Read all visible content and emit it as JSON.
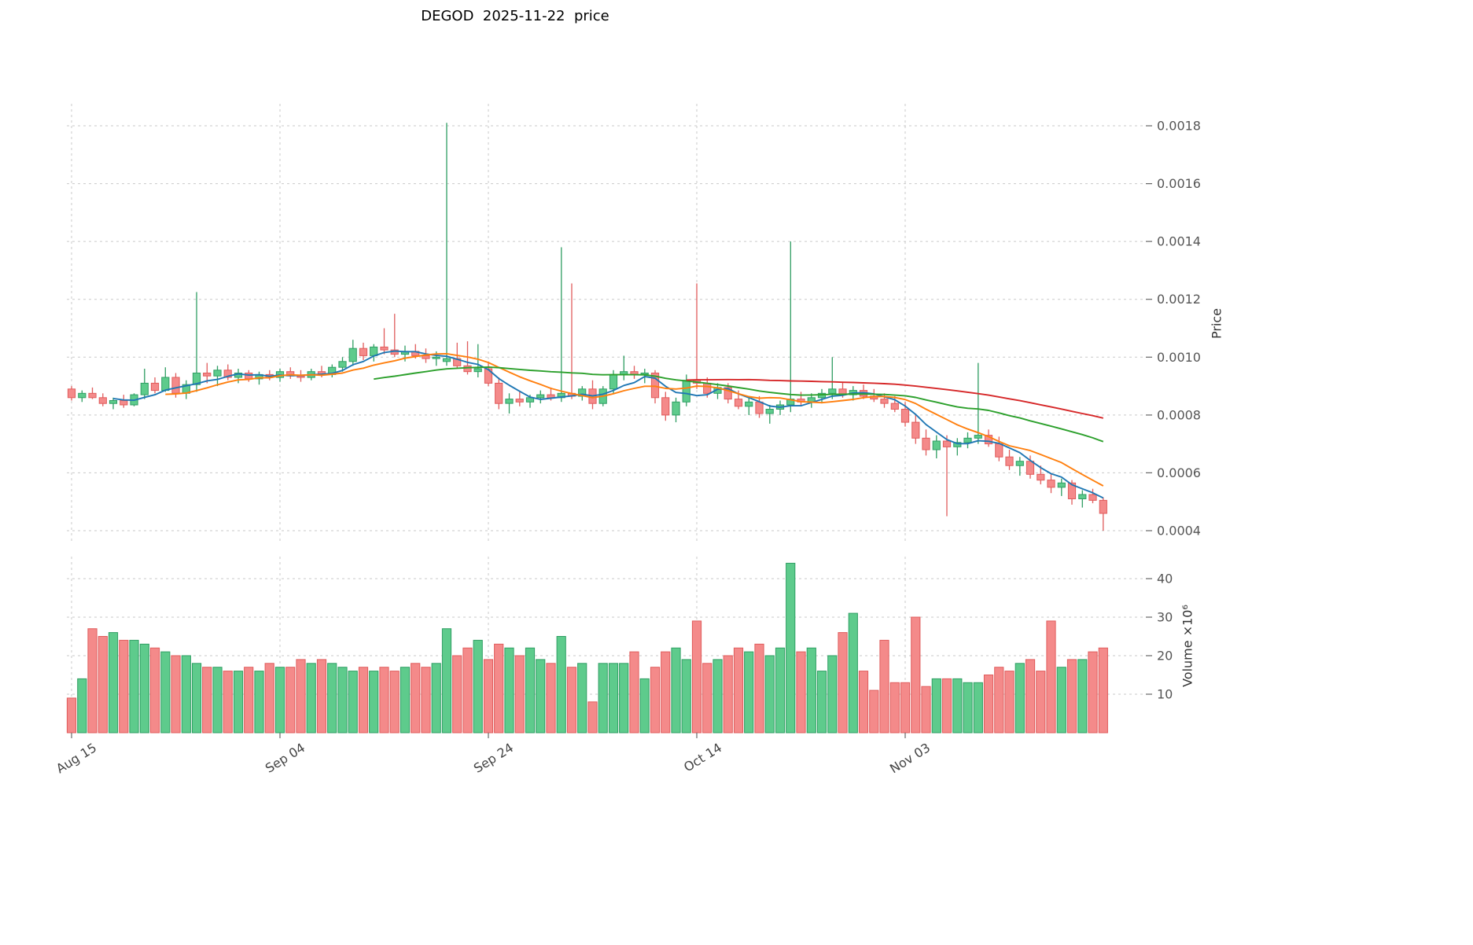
{
  "title": "DEGOD  2025-11-22  price",
  "axes": {
    "price_label": "Price",
    "volume_label": "Volume ×10⁶",
    "price_ticks": [
      "0.0004",
      "0.0006",
      "0.0008",
      "0.0010",
      "0.0012",
      "0.0014",
      "0.0016",
      "0.0018"
    ],
    "volume_ticks": [
      "10",
      "20",
      "30",
      "40"
    ],
    "x_ticks": [
      {
        "i": 0,
        "label": "Aug 15"
      },
      {
        "i": 20,
        "label": "Sep 04"
      },
      {
        "i": 40,
        "label": "Sep 24"
      },
      {
        "i": 60,
        "label": "Oct 14"
      },
      {
        "i": 80,
        "label": "Nov 03"
      }
    ]
  },
  "chart_data": {
    "type": "candlestick",
    "symbol": "DEGOD",
    "as_of_date": "2025-11-22",
    "start_date": "2025-08-15",
    "end_date": "2025-11-22",
    "grid": "dashed",
    "legend_position": "none",
    "price_ylim": [
      0.00035,
      0.00187
    ],
    "volume_ylim_millions": [
      0,
      46
    ],
    "volume_unit": 1000000,
    "moving_averages": [
      {
        "period": 5,
        "color": "#1f77b4"
      },
      {
        "period": 10,
        "color": "#ff7f0e"
      },
      {
        "period": 30,
        "color": "#2ca02c"
      },
      {
        "period": 60,
        "color": "#d62728"
      }
    ],
    "colors": {
      "up": "#5ecb8c",
      "up_edge": "#2f9e63",
      "down": "#f48a8a",
      "down_edge": "#e05c5c"
    },
    "ohlc": [
      [
        0.00089,
        0.0009,
        0.00085,
        0.00086
      ],
      [
        0.00086,
        0.000885,
        0.000845,
        0.000875
      ],
      [
        0.000875,
        0.000895,
        0.000855,
        0.00086
      ],
      [
        0.00086,
        0.000875,
        0.00083,
        0.00084
      ],
      [
        0.00084,
        0.00086,
        0.00082,
        0.00085
      ],
      [
        0.00085,
        0.00087,
        0.000825,
        0.000835
      ],
      [
        0.000835,
        0.000875,
        0.00083,
        0.00087
      ],
      [
        0.00087,
        0.00096,
        0.000855,
        0.00091
      ],
      [
        0.00091,
        0.00093,
        0.000875,
        0.000885
      ],
      [
        0.000885,
        0.000965,
        0.00088,
        0.00093
      ],
      [
        0.00093,
        0.000945,
        0.00086,
        0.000875
      ],
      [
        0.000875,
        0.00092,
        0.000855,
        0.000905
      ],
      [
        0.000905,
        0.001225,
        0.00088,
        0.000945
      ],
      [
        0.000945,
        0.00098,
        0.00091,
        0.000935
      ],
      [
        0.000935,
        0.00097,
        0.0009,
        0.000955
      ],
      [
        0.000955,
        0.000975,
        0.00092,
        0.00093
      ],
      [
        0.00093,
        0.00096,
        0.00091,
        0.000945
      ],
      [
        0.000945,
        0.000955,
        0.000915,
        0.000925
      ],
      [
        0.000925,
        0.00095,
        0.000905,
        0.00094
      ],
      [
        0.00094,
        0.000955,
        0.00092,
        0.00093
      ],
      [
        0.00093,
        0.00096,
        0.000915,
        0.00095
      ],
      [
        0.00095,
        0.000965,
        0.000925,
        0.000935
      ],
      [
        0.000935,
        0.000955,
        0.000915,
        0.00093
      ],
      [
        0.00093,
        0.00096,
        0.00092,
        0.00095
      ],
      [
        0.00095,
        0.00097,
        0.00093,
        0.00094
      ],
      [
        0.00094,
        0.000975,
        0.00093,
        0.000965
      ],
      [
        0.000965,
        0.001,
        0.00095,
        0.000985
      ],
      [
        0.000985,
        0.00106,
        0.00097,
        0.00103
      ],
      [
        0.00103,
        0.00105,
        0.00099,
        0.001005
      ],
      [
        0.001005,
        0.001045,
        0.000985,
        0.001035
      ],
      [
        0.001035,
        0.0011,
        0.00101,
        0.001025
      ],
      [
        0.001025,
        0.00115,
        0.001,
        0.00101
      ],
      [
        0.00101,
        0.00104,
        0.000985,
        0.00102
      ],
      [
        0.00102,
        0.001045,
        0.000995,
        0.001005
      ],
      [
        0.001005,
        0.00103,
        0.00098,
        0.000995
      ],
      [
        0.000995,
        0.00102,
        0.00097,
        0.001
      ],
      [
        0.000985,
        0.00181,
        0.00097,
        0.000995
      ],
      [
        0.000995,
        0.00105,
        0.00096,
        0.00097
      ],
      [
        0.00097,
        0.001055,
        0.00094,
        0.00095
      ],
      [
        0.00095,
        0.001045,
        0.00093,
        0.00096
      ],
      [
        0.00096,
        0.000985,
        0.0009,
        0.00091
      ],
      [
        0.00091,
        0.00093,
        0.00082,
        0.00084
      ],
      [
        0.00084,
        0.000875,
        0.000805,
        0.000855
      ],
      [
        0.000855,
        0.00088,
        0.00083,
        0.000845
      ],
      [
        0.000845,
        0.00087,
        0.000825,
        0.00086
      ],
      [
        0.00086,
        0.000885,
        0.00084,
        0.00087
      ],
      [
        0.00087,
        0.000895,
        0.00085,
        0.00086
      ],
      [
        0.00086,
        0.00138,
        0.000845,
        0.000875
      ],
      [
        0.000875,
        0.001255,
        0.000855,
        0.000865
      ],
      [
        0.000865,
        0.0009,
        0.00085,
        0.00089
      ],
      [
        0.00089,
        0.00092,
        0.00082,
        0.00084
      ],
      [
        0.00084,
        0.0009,
        0.00083,
        0.00089
      ],
      [
        0.00089,
        0.000955,
        0.000875,
        0.00094
      ],
      [
        0.00094,
        0.001005,
        0.00092,
        0.00095
      ],
      [
        0.00095,
        0.00097,
        0.000925,
        0.00094
      ],
      [
        0.00094,
        0.00096,
        0.00091,
        0.000945
      ],
      [
        0.000945,
        0.000955,
        0.00084,
        0.00086
      ],
      [
        0.00086,
        0.00088,
        0.00078,
        0.0008
      ],
      [
        0.0008,
        0.00086,
        0.000775,
        0.000845
      ],
      [
        0.000845,
        0.00094,
        0.00083,
        0.00092
      ],
      [
        0.00092,
        0.001255,
        0.00089,
        0.00091
      ],
      [
        0.00091,
        0.00093,
        0.00086,
        0.000875
      ],
      [
        0.000875,
        0.00091,
        0.000855,
        0.000895
      ],
      [
        0.000895,
        0.00091,
        0.00084,
        0.000855
      ],
      [
        0.000855,
        0.000885,
        0.00082,
        0.00083
      ],
      [
        0.00083,
        0.00086,
        0.0008,
        0.000845
      ],
      [
        0.000845,
        0.000865,
        0.00079,
        0.000805
      ],
      [
        0.000805,
        0.000835,
        0.00077,
        0.00082
      ],
      [
        0.00082,
        0.00085,
        0.0008,
        0.000835
      ],
      [
        0.000835,
        0.0014,
        0.00081,
        0.000855
      ],
      [
        0.000855,
        0.00088,
        0.00083,
        0.000845
      ],
      [
        0.000845,
        0.000875,
        0.000825,
        0.00086
      ],
      [
        0.00086,
        0.00089,
        0.00084,
        0.000875
      ],
      [
        0.000875,
        0.001,
        0.000855,
        0.00089
      ],
      [
        0.00089,
        0.000915,
        0.00086,
        0.00087
      ],
      [
        0.00087,
        0.0009,
        0.00085,
        0.000885
      ],
      [
        0.000885,
        0.000905,
        0.000855,
        0.000865
      ],
      [
        0.000865,
        0.00089,
        0.000845,
        0.000855
      ],
      [
        0.000855,
        0.000875,
        0.000825,
        0.00084
      ],
      [
        0.00084,
        0.000865,
        0.00081,
        0.00082
      ],
      [
        0.00082,
        0.000845,
        0.00076,
        0.000775
      ],
      [
        0.000775,
        0.0008,
        0.0007,
        0.00072
      ],
      [
        0.00072,
        0.00075,
        0.00066,
        0.00068
      ],
      [
        0.00068,
        0.00073,
        0.00065,
        0.00071
      ],
      [
        0.00071,
        0.00073,
        0.00045,
        0.00069
      ],
      [
        0.00069,
        0.00072,
        0.00066,
        0.000705
      ],
      [
        0.000705,
        0.00074,
        0.000685,
        0.00072
      ],
      [
        0.00072,
        0.00098,
        0.0007,
        0.00073
      ],
      [
        0.00073,
        0.00075,
        0.00069,
        0.0007
      ],
      [
        0.0007,
        0.000725,
        0.00064,
        0.000655
      ],
      [
        0.000655,
        0.00068,
        0.00061,
        0.000625
      ],
      [
        0.000625,
        0.000655,
        0.00059,
        0.00064
      ],
      [
        0.00064,
        0.00066,
        0.00058,
        0.000595
      ],
      [
        0.000595,
        0.000625,
        0.00056,
        0.000575
      ],
      [
        0.000575,
        0.000595,
        0.00053,
        0.00055
      ],
      [
        0.00055,
        0.00058,
        0.00052,
        0.000565
      ],
      [
        0.000565,
        0.000575,
        0.00049,
        0.00051
      ],
      [
        0.00051,
        0.00054,
        0.00048,
        0.000525
      ],
      [
        0.000525,
        0.000545,
        0.000495,
        0.000505
      ],
      [
        0.000505,
        0.000515,
        0.0004,
        0.00046
      ]
    ],
    "volume_millions": [
      9,
      14,
      27,
      25,
      26,
      24,
      24,
      23,
      22,
      21,
      20,
      20,
      18,
      17,
      17,
      16,
      16,
      17,
      16,
      18,
      17,
      17,
      19,
      18,
      19,
      18,
      17,
      16,
      17,
      16,
      17,
      16,
      17,
      18,
      17,
      18,
      27,
      20,
      22,
      24,
      19,
      23,
      22,
      20,
      22,
      19,
      18,
      25,
      17,
      18,
      8,
      18,
      18,
      18,
      21,
      14,
      17,
      21,
      22,
      19,
      29,
      18,
      19,
      20,
      22,
      21,
      23,
      20,
      22,
      44,
      21,
      22,
      16,
      20,
      26,
      31,
      16,
      11,
      24,
      13,
      13,
      30,
      12,
      14,
      14,
      14,
      13,
      13,
      15,
      17,
      16,
      18,
      19,
      16,
      29,
      17,
      19,
      19,
      21,
      22
    ]
  }
}
